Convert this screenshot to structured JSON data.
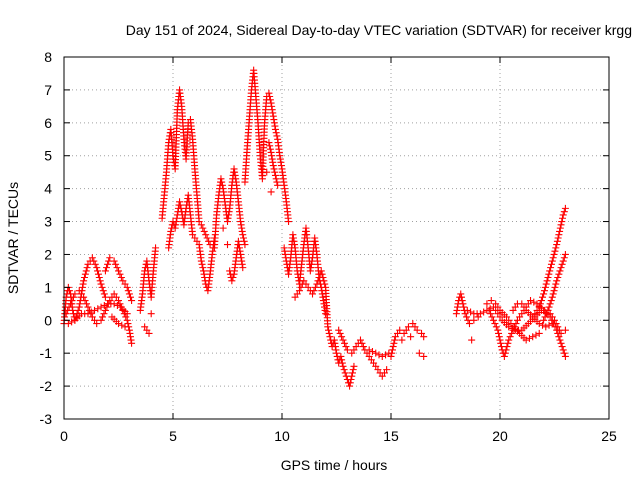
{
  "chart_data": {
    "type": "scatter",
    "title": "Day 151 of 2024, Sidereal Day-to-day VTEC variation (SDTVAR) for receiver krgg",
    "xlabel": "GPS time / hours",
    "ylabel": "SDTVAR / TECUs",
    "xlim": [
      0,
      25
    ],
    "ylim": [
      -3,
      8
    ],
    "xticks": [
      0,
      5,
      10,
      15,
      20,
      25
    ],
    "yticks": [
      -3,
      -2,
      -1,
      0,
      1,
      2,
      3,
      4,
      5,
      6,
      7,
      8
    ],
    "grid": true,
    "marker": "plus",
    "color": "#ff0000",
    "series": [
      {
        "name": "SDTVAR",
        "points": [
          [
            0.0,
            -0.1
          ],
          [
            0.1,
            0.7
          ],
          [
            0.2,
            1.0
          ],
          [
            0.3,
            0.8
          ],
          [
            0.4,
            0.3
          ],
          [
            0.5,
            0.0
          ],
          [
            0.7,
            0.4
          ],
          [
            0.9,
            1.2
          ],
          [
            1.1,
            1.7
          ],
          [
            1.3,
            1.9
          ],
          [
            1.5,
            1.6
          ],
          [
            1.7,
            1.1
          ],
          [
            1.9,
            0.7
          ],
          [
            0.1,
            0.2
          ],
          [
            0.3,
            0.5
          ],
          [
            0.5,
            0.8
          ],
          [
            0.7,
            0.9
          ],
          [
            0.9,
            0.7
          ],
          [
            1.1,
            0.4
          ],
          [
            1.3,
            0.1
          ],
          [
            1.5,
            -0.1
          ],
          [
            1.7,
            0.0
          ],
          [
            1.9,
            0.3
          ],
          [
            2.1,
            0.6
          ],
          [
            2.3,
            0.8
          ],
          [
            2.5,
            0.6
          ],
          [
            2.7,
            0.3
          ],
          [
            2.9,
            0.0
          ],
          [
            3.0,
            -0.3
          ],
          [
            3.1,
            -0.7
          ],
          [
            0.2,
            -0.1
          ],
          [
            0.5,
            0.0
          ],
          [
            0.8,
            0.2
          ],
          [
            1.1,
            0.2
          ],
          [
            1.4,
            0.3
          ],
          [
            1.7,
            0.4
          ],
          [
            2.0,
            0.5
          ],
          [
            2.3,
            0.5
          ],
          [
            2.6,
            0.4
          ],
          [
            2.9,
            0.2
          ],
          [
            1.9,
            1.5
          ],
          [
            2.1,
            1.9
          ],
          [
            2.3,
            1.8
          ],
          [
            2.5,
            1.5
          ],
          [
            2.7,
            1.2
          ],
          [
            2.9,
            1.0
          ],
          [
            3.1,
            0.6
          ],
          [
            2.2,
            0.1
          ],
          [
            2.5,
            -0.1
          ],
          [
            2.8,
            -0.2
          ],
          [
            3.5,
            0.3
          ],
          [
            3.6,
            0.8
          ],
          [
            3.7,
            1.5
          ],
          [
            3.8,
            1.8
          ],
          [
            3.9,
            1.2
          ],
          [
            4.0,
            0.7
          ],
          [
            4.1,
            1.5
          ],
          [
            4.2,
            2.2
          ],
          [
            4.0,
            0.2
          ],
          [
            3.7,
            -0.2
          ],
          [
            3.9,
            -0.4
          ],
          [
            4.5,
            3.1
          ],
          [
            4.6,
            3.8
          ],
          [
            4.7,
            4.5
          ],
          [
            4.8,
            5.4
          ],
          [
            4.9,
            5.8
          ],
          [
            5.0,
            5.0
          ],
          [
            5.1,
            4.6
          ],
          [
            5.2,
            6.4
          ],
          [
            5.3,
            7.0
          ],
          [
            5.4,
            6.5
          ],
          [
            5.5,
            5.5
          ],
          [
            5.6,
            4.9
          ],
          [
            5.7,
            6.0
          ],
          [
            5.8,
            6.1
          ],
          [
            5.9,
            5.5
          ],
          [
            6.0,
            4.6
          ],
          [
            6.1,
            3.8
          ],
          [
            6.2,
            3.0
          ],
          [
            4.8,
            2.2
          ],
          [
            4.9,
            2.7
          ],
          [
            5.0,
            3.0
          ],
          [
            5.1,
            2.8
          ],
          [
            5.2,
            3.2
          ],
          [
            5.3,
            3.6
          ],
          [
            5.4,
            3.3
          ],
          [
            5.5,
            2.9
          ],
          [
            5.6,
            3.4
          ],
          [
            5.7,
            3.8
          ],
          [
            5.8,
            3.2
          ],
          [
            5.9,
            2.6
          ],
          [
            6.2,
            2.3
          ],
          [
            6.3,
            1.8
          ],
          [
            6.4,
            1.5
          ],
          [
            6.5,
            1.1
          ],
          [
            6.6,
            0.9
          ],
          [
            6.7,
            1.4
          ],
          [
            6.8,
            2.0
          ],
          [
            6.9,
            2.5
          ],
          [
            6.3,
            2.9
          ],
          [
            6.5,
            2.6
          ],
          [
            6.7,
            2.3
          ],
          [
            6.9,
            2.2
          ],
          [
            7.0,
            3.2
          ],
          [
            7.1,
            3.8
          ],
          [
            7.2,
            4.3
          ],
          [
            7.3,
            4.0
          ],
          [
            7.4,
            3.5
          ],
          [
            7.5,
            3.0
          ],
          [
            7.6,
            3.4
          ],
          [
            7.7,
            4.1
          ],
          [
            7.8,
            4.6
          ],
          [
            7.9,
            4.2
          ],
          [
            8.0,
            3.6
          ],
          [
            8.1,
            3.0
          ],
          [
            8.2,
            2.6
          ],
          [
            8.3,
            2.3
          ],
          [
            7.6,
            1.5
          ],
          [
            7.7,
            1.2
          ],
          [
            7.8,
            1.4
          ],
          [
            7.9,
            1.9
          ],
          [
            8.0,
            2.4
          ],
          [
            8.1,
            2.0
          ],
          [
            8.2,
            1.6
          ],
          [
            7.5,
            2.3
          ],
          [
            7.3,
            2.8
          ],
          [
            8.3,
            4.2
          ],
          [
            8.4,
            5.2
          ],
          [
            8.5,
            6.1
          ],
          [
            8.6,
            7.0
          ],
          [
            8.7,
            7.6
          ],
          [
            8.8,
            6.8
          ],
          [
            8.9,
            6.0
          ],
          [
            9.0,
            5.0
          ],
          [
            9.1,
            4.3
          ],
          [
            9.2,
            6.0
          ],
          [
            9.3,
            6.8
          ],
          [
            9.4,
            6.9
          ],
          [
            9.5,
            6.6
          ],
          [
            9.6,
            6.2
          ],
          [
            9.7,
            5.8
          ],
          [
            9.8,
            5.5
          ],
          [
            9.9,
            5.0
          ],
          [
            10.0,
            4.6
          ],
          [
            10.1,
            4.1
          ],
          [
            10.2,
            3.6
          ],
          [
            10.3,
            3.0
          ],
          [
            9.4,
            5.4
          ],
          [
            9.5,
            5.1
          ],
          [
            9.6,
            4.7
          ],
          [
            9.7,
            4.4
          ],
          [
            9.8,
            4.1
          ],
          [
            9.5,
            3.9
          ],
          [
            9.3,
            4.5
          ],
          [
            10.1,
            2.2
          ],
          [
            10.2,
            1.8
          ],
          [
            10.3,
            1.4
          ],
          [
            10.4,
            1.9
          ],
          [
            10.5,
            2.6
          ],
          [
            10.6,
            2.2
          ],
          [
            10.7,
            1.5
          ],
          [
            10.8,
            1.1
          ],
          [
            10.9,
            1.7
          ],
          [
            11.0,
            2.3
          ],
          [
            11.1,
            2.8
          ],
          [
            11.2,
            2.2
          ],
          [
            11.3,
            1.5
          ],
          [
            11.4,
            1.9
          ],
          [
            11.5,
            2.5
          ],
          [
            11.6,
            2.0
          ],
          [
            11.7,
            1.3
          ],
          [
            11.8,
            1.0
          ],
          [
            11.9,
            0.6
          ],
          [
            12.0,
            0.2
          ],
          [
            10.6,
            0.7
          ],
          [
            10.8,
            0.9
          ],
          [
            11.0,
            1.2
          ],
          [
            11.2,
            1.0
          ],
          [
            11.4,
            0.8
          ],
          [
            11.6,
            1.1
          ],
          [
            11.8,
            1.5
          ],
          [
            12.0,
            1.0
          ],
          [
            12.1,
            -0.2
          ],
          [
            12.2,
            -0.5
          ],
          [
            12.3,
            -0.8
          ],
          [
            12.4,
            -0.6
          ],
          [
            12.5,
            -1.0
          ],
          [
            12.6,
            -1.3
          ],
          [
            12.7,
            -1.1
          ],
          [
            12.8,
            -1.4
          ],
          [
            12.9,
            -1.6
          ],
          [
            13.0,
            -1.8
          ],
          [
            13.1,
            -2.0
          ],
          [
            13.2,
            -1.7
          ],
          [
            13.3,
            -1.4
          ],
          [
            12.6,
            -0.3
          ],
          [
            12.8,
            -0.6
          ],
          [
            13.0,
            -0.9
          ],
          [
            13.2,
            -1.0
          ],
          [
            13.4,
            -0.8
          ],
          [
            13.6,
            -0.6
          ],
          [
            13.8,
            -0.9
          ],
          [
            14.0,
            -1.1
          ],
          [
            14.2,
            -1.3
          ],
          [
            14.4,
            -1.5
          ],
          [
            14.6,
            -1.7
          ],
          [
            14.8,
            -1.5
          ],
          [
            14.0,
            -0.9
          ],
          [
            14.3,
            -1.0
          ],
          [
            14.6,
            -1.1
          ],
          [
            14.9,
            -1.0
          ],
          [
            15.0,
            -1.1
          ],
          [
            15.2,
            -0.5
          ],
          [
            15.4,
            -0.3
          ],
          [
            15.6,
            -0.4
          ],
          [
            15.8,
            -0.2
          ],
          [
            16.0,
            -0.1
          ],
          [
            16.2,
            -0.3
          ],
          [
            16.4,
            -0.4
          ],
          [
            16.5,
            -0.5
          ],
          [
            15.5,
            -0.6
          ],
          [
            15.9,
            -0.5
          ],
          [
            16.3,
            -1.0
          ],
          [
            16.5,
            -1.1
          ],
          [
            18.0,
            0.2
          ],
          [
            18.1,
            0.6
          ],
          [
            18.2,
            0.8
          ],
          [
            18.3,
            0.5
          ],
          [
            18.4,
            0.2
          ],
          [
            18.6,
            -0.1
          ],
          [
            18.8,
            0.0
          ],
          [
            19.0,
            0.1
          ],
          [
            18.7,
            -0.6
          ],
          [
            18.5,
            0.3
          ],
          [
            18.8,
            0.2
          ],
          [
            19.1,
            0.2
          ],
          [
            19.4,
            0.3
          ],
          [
            19.7,
            0.4
          ],
          [
            19.9,
            0.2
          ],
          [
            20.1,
            0.0
          ],
          [
            20.4,
            -0.2
          ],
          [
            20.7,
            -0.3
          ],
          [
            21.0,
            -0.3
          ],
          [
            21.3,
            -0.1
          ],
          [
            21.6,
            0.1
          ],
          [
            21.9,
            0.3
          ],
          [
            22.2,
            0.3
          ],
          [
            22.5,
            0.0
          ],
          [
            22.8,
            -0.4
          ],
          [
            23.0,
            -0.3
          ],
          [
            19.4,
            0.5
          ],
          [
            19.6,
            0.6
          ],
          [
            19.8,
            0.5
          ],
          [
            20.0,
            0.3
          ],
          [
            20.3,
            0.1
          ],
          [
            20.6,
            -0.2
          ],
          [
            20.9,
            -0.4
          ],
          [
            21.2,
            -0.6
          ],
          [
            21.5,
            -0.5
          ],
          [
            21.8,
            -0.4
          ],
          [
            19.5,
            0.3
          ],
          [
            19.7,
            0.0
          ],
          [
            19.9,
            -0.3
          ],
          [
            20.0,
            -0.6
          ],
          [
            20.1,
            -0.9
          ],
          [
            20.2,
            -1.1
          ],
          [
            20.4,
            -0.6
          ],
          [
            20.6,
            -0.3
          ],
          [
            20.8,
            0.0
          ],
          [
            21.0,
            0.2
          ],
          [
            21.2,
            0.4
          ],
          [
            21.4,
            0.6
          ],
          [
            21.7,
            0.5
          ],
          [
            22.0,
            0.3
          ],
          [
            22.3,
            0.1
          ],
          [
            22.6,
            -0.3
          ],
          [
            22.8,
            -0.7
          ],
          [
            23.0,
            -1.1
          ],
          [
            20.6,
            0.3
          ],
          [
            20.8,
            0.5
          ],
          [
            21.0,
            0.5
          ],
          [
            21.2,
            0.3
          ],
          [
            21.5,
            0.1
          ],
          [
            21.8,
            -0.1
          ],
          [
            22.1,
            -0.2
          ],
          [
            22.4,
            -0.1
          ],
          [
            21.6,
            0.2
          ],
          [
            21.8,
            0.4
          ],
          [
            22.0,
            0.8
          ],
          [
            22.2,
            1.3
          ],
          [
            22.4,
            1.8
          ],
          [
            22.6,
            2.3
          ],
          [
            22.7,
            2.6
          ],
          [
            22.8,
            2.9
          ],
          [
            22.9,
            3.2
          ],
          [
            23.0,
            3.4
          ],
          [
            22.0,
            0.0
          ],
          [
            22.2,
            0.3
          ],
          [
            22.4,
            0.7
          ],
          [
            22.6,
            1.2
          ],
          [
            22.8,
            1.6
          ],
          [
            23.0,
            2.0
          ]
        ]
      }
    ]
  }
}
